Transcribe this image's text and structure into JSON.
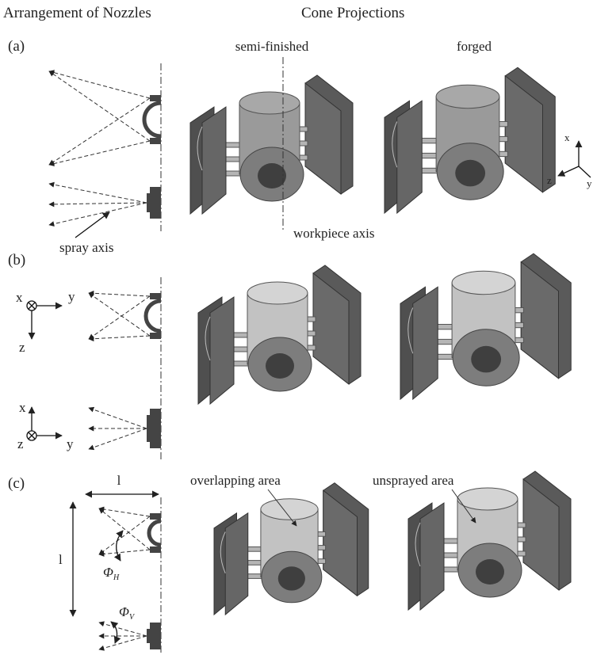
{
  "headings": {
    "left": "Arrangement of Nozzles",
    "right": "Cone Projections"
  },
  "panels": [
    {
      "label": "(a)",
      "columns": [
        "semi-finished",
        "forged"
      ],
      "annotations": [
        "spray axis",
        "workpiece axis"
      ],
      "axes": [
        "x",
        "z",
        "y"
      ]
    },
    {
      "label": "(b)",
      "axes_top": [
        "x",
        "y",
        "z"
      ],
      "axes_bottom": [
        "x",
        "z",
        "y"
      ]
    },
    {
      "label": "(c)",
      "dimensions": [
        "l",
        "l"
      ],
      "angles": [
        {
          "symbol": "Φ",
          "subscript": "H"
        },
        {
          "symbol": "Φ",
          "subscript": "V"
        }
      ],
      "annotations": [
        "overlapping area",
        "unsprayed area"
      ]
    }
  ]
}
